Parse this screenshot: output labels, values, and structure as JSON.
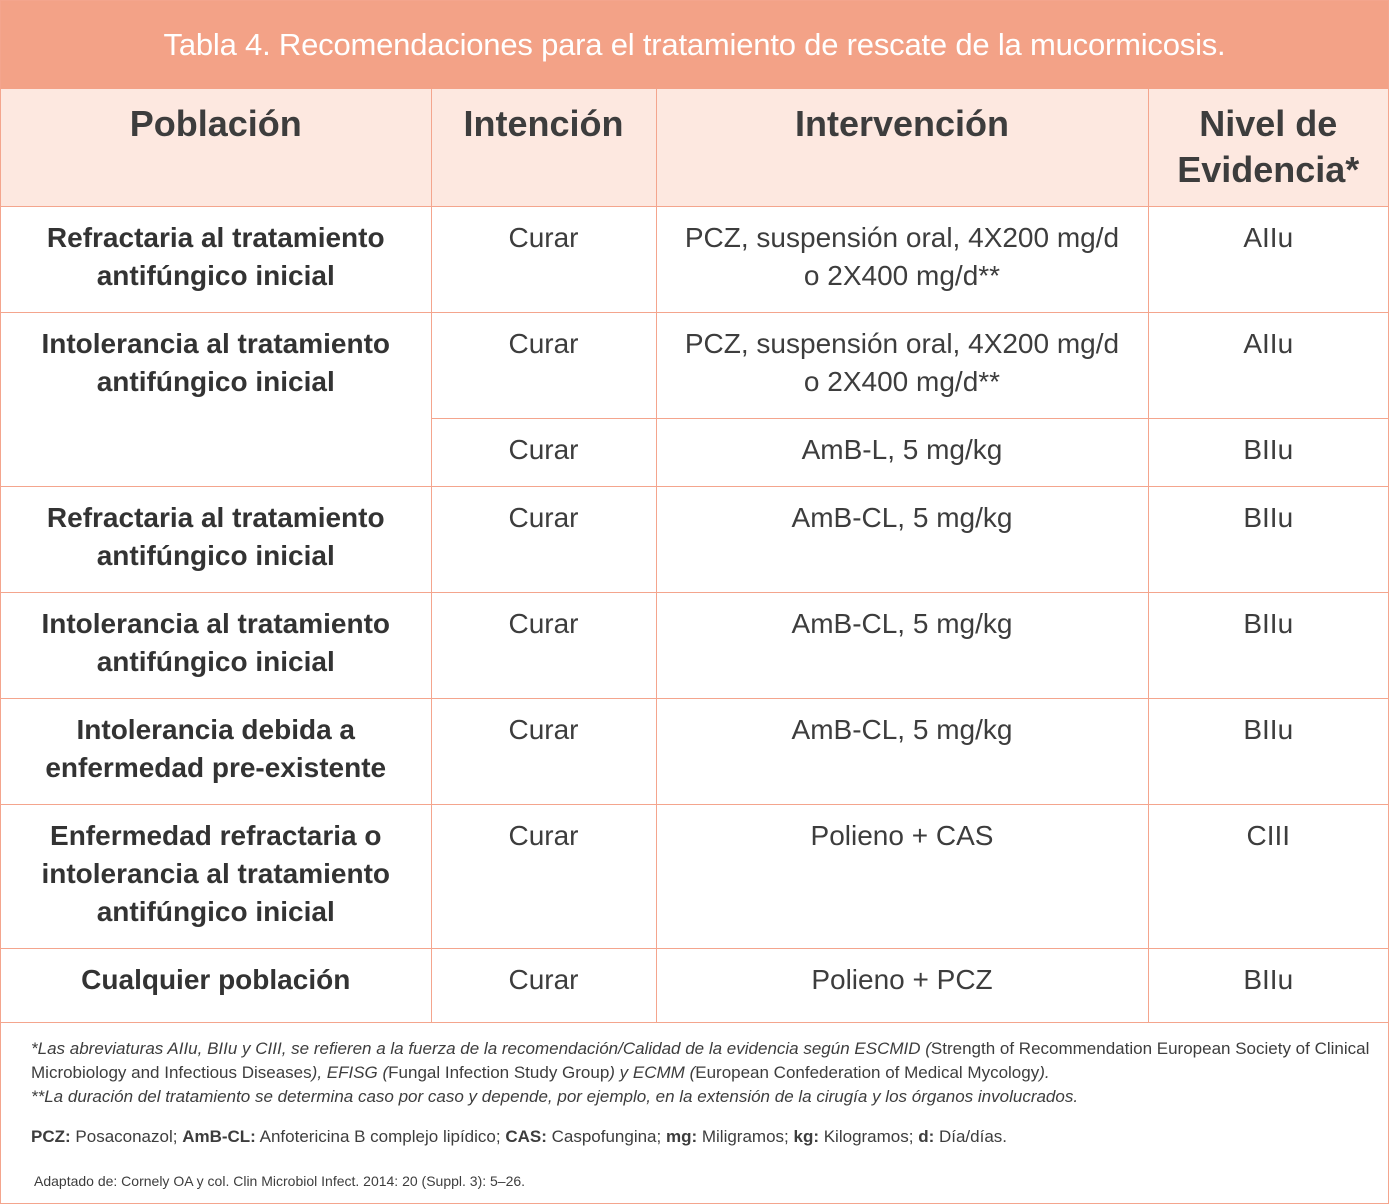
{
  "title": "Tabla 4. Recomendaciones para el tratamiento de rescate de la mucormicosis.",
  "headers": {
    "poblacion": "Población",
    "intencion": "Intención",
    "intervencion": "Intervención",
    "nivel_1": "Nivel de",
    "nivel_2": "Evidencia*"
  },
  "rows": [
    {
      "pop_1": "Refractaria al tratamiento",
      "pop_2": "antifúngico inicial",
      "intencion": "Curar",
      "interv_1": "PCZ, suspensión oral, 4X200 mg/d",
      "interv_2": "o 2X400 mg/d**",
      "nivel": "AIIu"
    },
    {
      "pop_1": "Intolerancia al tratamiento",
      "pop_2": "antifúngico inicial",
      "intencion": "Curar",
      "interv_1": "PCZ, suspensión oral, 4X200 mg/d",
      "interv_2": "o 2X400 mg/d**",
      "nivel": "AIIu"
    },
    {
      "intencion": "Curar",
      "interv_1": "AmB-L, 5 mg/kg",
      "nivel": "BIIu"
    },
    {
      "pop_1": "Refractaria al tratamiento",
      "pop_2": "antifúngico inicial",
      "intencion": "Curar",
      "interv_1": "AmB-CL, 5 mg/kg",
      "nivel": "BIIu"
    },
    {
      "pop_1": "Intolerancia al tratamiento",
      "pop_2": "antifúngico inicial",
      "intencion": "Curar",
      "interv_1": "AmB-CL, 5 mg/kg",
      "nivel": "BIIu"
    },
    {
      "pop_1": "Intolerancia debida a",
      "pop_2": "enfermedad pre-existente",
      "intencion": "Curar",
      "interv_1": "AmB-CL, 5 mg/kg",
      "nivel": "BIIu"
    },
    {
      "pop_1": "Enfermedad refractaria o",
      "pop_2": "intolerancia al tratamiento",
      "pop_3": "antifúngico inicial",
      "intencion": "Curar",
      "interv_1": "Polieno + CAS",
      "nivel": "CIII"
    },
    {
      "pop_1": "Cualquier población",
      "intencion": "Curar",
      "interv_1": "Polieno + PCZ",
      "nivel": "BIIu"
    }
  ],
  "notes": {
    "n1_a": "*Las abreviaturas AIIu, BIIu y CIII, se refieren a la fuerza de la recomendación/Calidad de la evidencia según ESCMID (",
    "n1_b": "Strength of Recommendation European Society of Clinical Microbiology and Infectious Diseases",
    "n1_c": "), EFISG (",
    "n1_d": "Fungal Infection Study Group",
    "n1_e": ") y ECMM (",
    "n1_f": "European Confederation of Medical Mycology",
    "n1_g": ").",
    "n2": "**La duración del tratamiento se determina caso por caso y depende, por ejemplo, en la extensión de la cirugía y los órganos involucrados."
  },
  "abbreviations": [
    {
      "term": "PCZ:",
      "def": " Posaconazol; "
    },
    {
      "term": "AmB-CL:",
      "def": " Anfotericina B complejo lipídico; "
    },
    {
      "term": "CAS:",
      "def": " Caspofungina; "
    },
    {
      "term": "mg:",
      "def": " Miligramos; "
    },
    {
      "term": "kg:",
      "def": " Kilogramos; "
    },
    {
      "term": "d:",
      "def": " Día/días."
    }
  ],
  "source": "Adaptado de: Cornely OA y col. Clin Microbiol Infect. 2014: 20 (Suppl. 3): 5–26."
}
